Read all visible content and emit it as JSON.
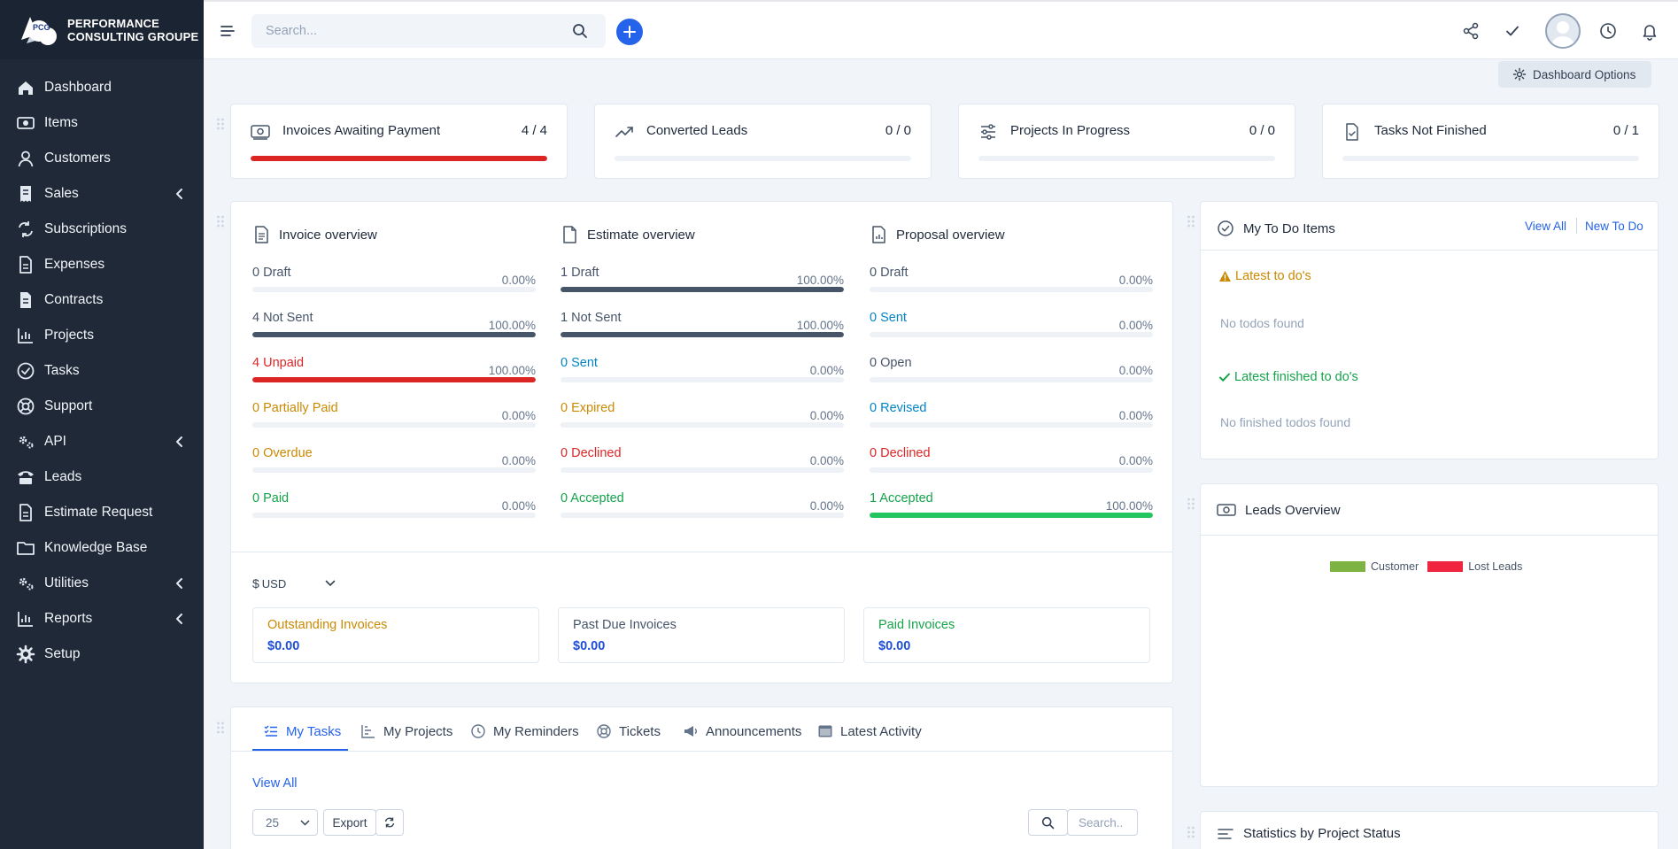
{
  "brand": {
    "line1": "PERFORMANCE",
    "line2": "CONSULTING GROUPE",
    "logo_text": "PCG"
  },
  "sidebar": {
    "items": [
      {
        "label": "Dashboard",
        "icon": "home-icon"
      },
      {
        "label": "Items",
        "icon": "money-icon"
      },
      {
        "label": "Customers",
        "icon": "user-icon"
      },
      {
        "label": "Sales",
        "icon": "receipt-icon",
        "has_submenu": true
      },
      {
        "label": "Subscriptions",
        "icon": "repeat-icon"
      },
      {
        "label": "Expenses",
        "icon": "file-icon"
      },
      {
        "label": "Contracts",
        "icon": "contract-icon"
      },
      {
        "label": "Projects",
        "icon": "chart-icon"
      },
      {
        "label": "Tasks",
        "icon": "check-circle-icon"
      },
      {
        "label": "Support",
        "icon": "lifebuoy-icon"
      },
      {
        "label": "API",
        "icon": "cogs-icon",
        "has_submenu": true
      },
      {
        "label": "Leads",
        "icon": "tty-icon"
      },
      {
        "label": "Estimate Request",
        "icon": "file-icon"
      },
      {
        "label": "Knowledge Base",
        "icon": "folder-icon"
      },
      {
        "label": "Utilities",
        "icon": "cogs-icon",
        "has_submenu": true
      },
      {
        "label": "Reports",
        "icon": "chart-icon",
        "has_submenu": true
      },
      {
        "label": "Setup",
        "icon": "gear-icon"
      }
    ]
  },
  "header": {
    "search_placeholder": "Search..."
  },
  "dashboard_options_label": "Dashboard Options",
  "stats": [
    {
      "title": "Invoices Awaiting Payment",
      "value": "4 / 4",
      "progress": 1.0,
      "color": "#dc2626",
      "icon": "money-icon"
    },
    {
      "title": "Converted Leads",
      "value": "0 / 0",
      "progress": 0,
      "color": "#2563eb",
      "icon": "trend-up-icon"
    },
    {
      "title": "Projects In Progress",
      "value": "0 / 0",
      "progress": 0,
      "color": "#2563eb",
      "icon": "sliders-icon"
    },
    {
      "title": "Tasks Not Finished",
      "value": "0 / 1",
      "progress": 0,
      "color": "#2563eb",
      "icon": "file-check-icon"
    }
  ],
  "overview": {
    "invoice": {
      "title": "Invoice overview",
      "rows": [
        {
          "label": "0 Draft",
          "pct": "0.00%",
          "value": 0,
          "tone": "gray"
        },
        {
          "label": "4 Not Sent",
          "pct": "100.00%",
          "value": 1,
          "tone": "gray"
        },
        {
          "label": "4 Unpaid",
          "pct": "100.00%",
          "value": 1,
          "tone": "red"
        },
        {
          "label": "0 Partially Paid",
          "pct": "0.00%",
          "value": 0,
          "tone": "amber"
        },
        {
          "label": "0 Overdue",
          "pct": "0.00%",
          "value": 0,
          "tone": "amber"
        },
        {
          "label": "0 Paid",
          "pct": "0.00%",
          "value": 0,
          "tone": "green"
        }
      ]
    },
    "estimate": {
      "title": "Estimate overview",
      "rows": [
        {
          "label": "1 Draft",
          "pct": "100.00%",
          "value": 1,
          "tone": "gray"
        },
        {
          "label": "1 Not Sent",
          "pct": "100.00%",
          "value": 1,
          "tone": "gray"
        },
        {
          "label": "0 Sent",
          "pct": "0.00%",
          "value": 0,
          "tone": "blue"
        },
        {
          "label": "0 Expired",
          "pct": "0.00%",
          "value": 0,
          "tone": "amber"
        },
        {
          "label": "0 Declined",
          "pct": "0.00%",
          "value": 0,
          "tone": "red"
        },
        {
          "label": "0 Accepted",
          "pct": "0.00%",
          "value": 0,
          "tone": "green"
        }
      ]
    },
    "proposal": {
      "title": "Proposal overview",
      "rows": [
        {
          "label": "0 Draft",
          "pct": "0.00%",
          "value": 0,
          "tone": "gray"
        },
        {
          "label": "0 Sent",
          "pct": "0.00%",
          "value": 0,
          "tone": "blue"
        },
        {
          "label": "0 Open",
          "pct": "0.00%",
          "value": 0,
          "tone": "gray"
        },
        {
          "label": "0 Revised",
          "pct": "0.00%",
          "value": 0,
          "tone": "blue"
        },
        {
          "label": "0 Declined",
          "pct": "0.00%",
          "value": 0,
          "tone": "red"
        },
        {
          "label": "1 Accepted",
          "pct": "100.00%",
          "value": 1,
          "tone": "green"
        }
      ]
    },
    "currency_symbol": "$",
    "currency_code": "USD",
    "summary": [
      {
        "label": "Outstanding Invoices",
        "value": "$0.00",
        "tone": "amber"
      },
      {
        "label": "Past Due Invoices",
        "value": "$0.00",
        "tone": "gray"
      },
      {
        "label": "Paid Invoices",
        "value": "$0.00",
        "tone": "green"
      }
    ]
  },
  "tabs": {
    "items": [
      {
        "label": "My Tasks",
        "icon": "tasks-icon",
        "active": true
      },
      {
        "label": "My Projects",
        "icon": "chart-icon"
      },
      {
        "label": "My Reminders",
        "icon": "clock-icon"
      },
      {
        "label": "Tickets",
        "icon": "lifebuoy-icon"
      },
      {
        "label": "Announcements",
        "icon": "megaphone-icon"
      },
      {
        "label": "Latest Activity",
        "icon": "window-icon"
      }
    ],
    "view_all": "View All",
    "page_size": "25",
    "export": "Export",
    "search_placeholder": "Search.."
  },
  "todo": {
    "title": "My To Do Items",
    "view_all": "View All",
    "new_todo": "New To Do",
    "latest_title": "Latest to do's",
    "latest_empty": "No todos found",
    "finished_title": "Latest finished to do's",
    "finished_empty": "No finished todos found"
  },
  "leads": {
    "title": "Leads Overview",
    "legend": [
      {
        "name": "Customer",
        "color": "#7cb342"
      },
      {
        "name": "Lost Leads",
        "color": "#f0253f"
      }
    ]
  },
  "stats_project": {
    "title": "Statistics by Project Status"
  },
  "colors": {
    "accent": "#2563eb",
    "sidebar": "#1f2937",
    "danger": "#dc2626",
    "dark_bar": "#475569",
    "success": "#22c55e"
  }
}
